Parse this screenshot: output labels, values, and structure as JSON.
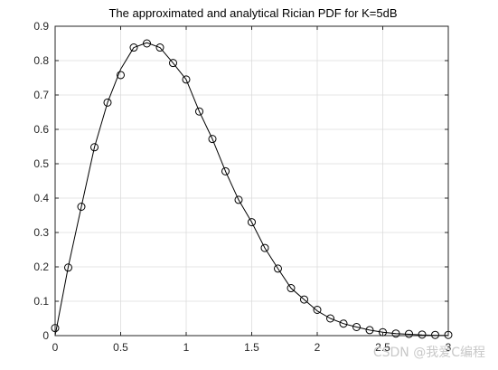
{
  "chart_data": {
    "type": "line",
    "title": "The approximated and analytical Rician PDF for K=5dB",
    "xlabel": "",
    "ylabel": "",
    "xlim": [
      0,
      3
    ],
    "ylim": [
      0,
      0.9
    ],
    "grid": true,
    "x_ticks": [
      0,
      0.5,
      1,
      1.5,
      2,
      2.5,
      3
    ],
    "x_tick_labels": [
      "0",
      "0.5",
      "1",
      "1.5",
      "2",
      "2.5",
      "3"
    ],
    "y_ticks": [
      0,
      0.1,
      0.2,
      0.3,
      0.4,
      0.5,
      0.6,
      0.7,
      0.8,
      0.9
    ],
    "y_tick_labels": [
      "0",
      "0.1",
      "0.2",
      "0.3",
      "0.4",
      "0.5",
      "0.6",
      "0.7",
      "0.8",
      "0.9"
    ],
    "series": [
      {
        "style": "solid-line",
        "color": "#000000",
        "x": [
          0,
          0.1,
          0.2,
          0.3,
          0.4,
          0.5,
          0.6,
          0.7,
          0.8,
          0.9,
          1.0,
          1.1,
          1.2,
          1.3,
          1.4,
          1.5,
          1.6,
          1.7,
          1.8,
          1.9,
          2.0,
          2.1,
          2.2,
          2.3,
          2.4,
          2.5,
          2.6,
          2.7,
          2.8,
          2.9,
          3.0
        ],
        "values": [
          0,
          0.2,
          0.375,
          0.548,
          0.678,
          0.775,
          0.838,
          0.852,
          0.838,
          0.793,
          0.745,
          0.652,
          0.572,
          0.478,
          0.395,
          0.33,
          0.255,
          0.195,
          0.138,
          0.105,
          0.072,
          0.05,
          0.035,
          0.025,
          0.016,
          0.01,
          0.006,
          0.004,
          0.002,
          0.001,
          0.0005
        ]
      },
      {
        "style": "circle-markers",
        "color": "#000000",
        "x": [
          0,
          0.1,
          0.2,
          0.3,
          0.4,
          0.5,
          0.6,
          0.7,
          0.8,
          0.9,
          1.0,
          1.1,
          1.2,
          1.3,
          1.4,
          1.5,
          1.6,
          1.7,
          1.8,
          1.9,
          2.0,
          2.1,
          2.2,
          2.3,
          2.4,
          2.5,
          2.6,
          2.7,
          2.8,
          2.9,
          3.0
        ],
        "values": [
          0.022,
          0.198,
          0.375,
          0.548,
          0.678,
          0.758,
          0.838,
          0.85,
          0.838,
          0.793,
          0.745,
          0.652,
          0.572,
          0.478,
          0.395,
          0.33,
          0.255,
          0.195,
          0.138,
          0.105,
          0.075,
          0.05,
          0.035,
          0.025,
          0.016,
          0.01,
          0.006,
          0.005,
          0.003,
          0.002,
          0.002
        ]
      }
    ]
  },
  "watermark": "CSDN @我爱C编程",
  "colors": {
    "axes": "#262626",
    "grid": "#dcdcdc",
    "line": "#000000",
    "background": "#ffffff"
  }
}
